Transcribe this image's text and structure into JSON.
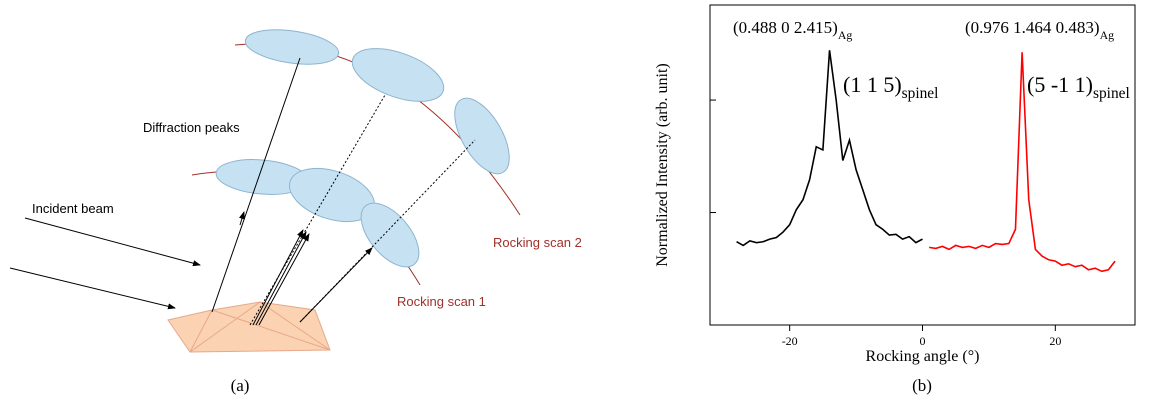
{
  "panel_a": {
    "labels": {
      "diffraction": "Diffraction peaks",
      "incident": "Incident beam",
      "scan2": "Rocking scan 2",
      "scan1": "Rocking scan 1"
    },
    "caption": "(a)"
  },
  "chart_data": {
    "type": "line",
    "xlabel": "Rocking angle (°)",
    "ylabel": "Normalized Intensity (arb. unit)",
    "caption": "(b)",
    "xlim": [
      -32,
      32
    ],
    "xticks": [
      -20,
      0,
      20
    ],
    "ylim": [
      0.1,
      70
    ],
    "yticks": [
      1,
      10
    ],
    "log_y": true,
    "annotations": [
      {
        "text": "(0.488 0 2.415)",
        "subscript": "Ag"
      },
      {
        "text": "(0.976 1.464 0.483)",
        "subscript": "Ag"
      },
      {
        "text": "(1 1 5)",
        "subscript": "spinel"
      },
      {
        "text": "(5 -1 1)",
        "subscript": "spinel"
      }
    ],
    "series": [
      {
        "color": "#000000",
        "x": [
          -28,
          -27,
          -26,
          -25,
          -24,
          -23,
          -22,
          -21,
          -20,
          -19,
          -18,
          -17,
          -16,
          -15,
          -14,
          -13,
          -12,
          -11,
          -10,
          -9,
          -8,
          -7,
          -6,
          -5,
          -4,
          -3,
          -2,
          -1,
          0
        ],
        "values": [
          0.55,
          0.51,
          0.56,
          0.54,
          0.55,
          0.58,
          0.6,
          0.67,
          0.78,
          1.06,
          1.3,
          1.96,
          3.84,
          3.6,
          27.7,
          10,
          2.9,
          4.4,
          2.4,
          1.6,
          1.06,
          0.78,
          0.71,
          0.63,
          0.64,
          0.58,
          0.61,
          0.54,
          0.58
        ]
      },
      {
        "color": "#ff0000",
        "x": [
          1,
          2,
          3,
          4,
          5,
          6,
          7,
          8,
          9,
          10,
          11,
          12,
          13,
          14,
          15,
          16,
          17,
          18,
          19,
          20,
          21,
          22,
          23,
          24,
          25,
          26,
          27,
          28,
          29
        ],
        "values": [
          0.49,
          0.48,
          0.5,
          0.47,
          0.51,
          0.49,
          0.5,
          0.48,
          0.51,
          0.49,
          0.53,
          0.52,
          0.53,
          0.71,
          26.6,
          1.3,
          0.47,
          0.41,
          0.38,
          0.37,
          0.34,
          0.35,
          0.33,
          0.34,
          0.31,
          0.32,
          0.3,
          0.31,
          0.37
        ]
      }
    ]
  }
}
